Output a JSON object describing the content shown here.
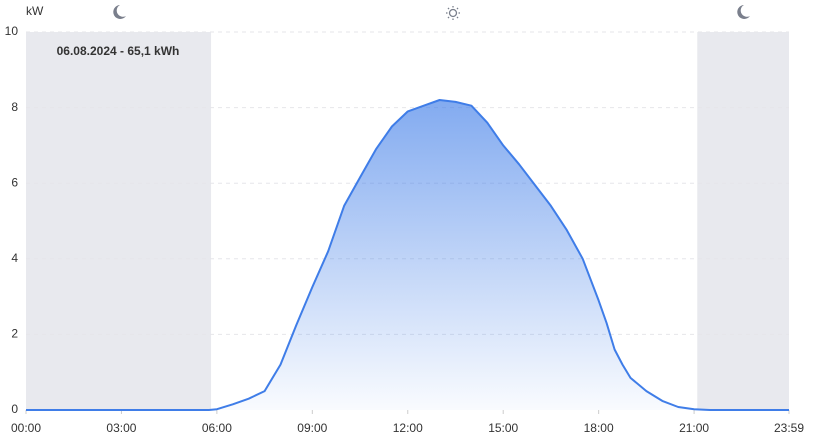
{
  "chart_data": {
    "type": "area",
    "y_label": "kW",
    "annotation": "06.08.2024 - 65,1 kWh",
    "color": "#3f7de8",
    "shade_color": "#e8e9ee",
    "night_bands": [
      [
        0,
        349
      ],
      [
        1266,
        1439
      ]
    ],
    "xlim": [
      0,
      1439
    ],
    "xticks": [
      {
        "value": 0,
        "label": "00:00"
      },
      {
        "value": 180,
        "label": "03:00"
      },
      {
        "value": 360,
        "label": "06:00"
      },
      {
        "value": 540,
        "label": "09:00"
      },
      {
        "value": 720,
        "label": "12:00"
      },
      {
        "value": 900,
        "label": "15:00"
      },
      {
        "value": 1080,
        "label": "18:00"
      },
      {
        "value": 1260,
        "label": "21:00"
      },
      {
        "value": 1439,
        "label": "23:59"
      }
    ],
    "ylim": [
      0,
      10
    ],
    "yticks": [
      0,
      2,
      4,
      6,
      8,
      10
    ],
    "grid": true,
    "x": [
      0,
      300,
      345,
      360,
      390,
      420,
      450,
      480,
      510,
      540,
      570,
      600,
      630,
      660,
      690,
      720,
      750,
      780,
      810,
      840,
      870,
      900,
      930,
      960,
      990,
      1020,
      1050,
      1080,
      1095,
      1110,
      1125,
      1140,
      1170,
      1200,
      1230,
      1260,
      1290,
      1439
    ],
    "values": [
      0,
      0,
      0,
      0.02,
      0.15,
      0.3,
      0.5,
      1.2,
      2.25,
      3.25,
      4.2,
      5.4,
      6.15,
      6.9,
      7.5,
      7.9,
      8.05,
      8.2,
      8.15,
      8.05,
      7.6,
      7.0,
      6.5,
      5.95,
      5.4,
      4.76,
      4.0,
      2.9,
      2.3,
      1.6,
      1.2,
      0.85,
      0.5,
      0.24,
      0.08,
      0.02,
      0,
      0
    ]
  }
}
